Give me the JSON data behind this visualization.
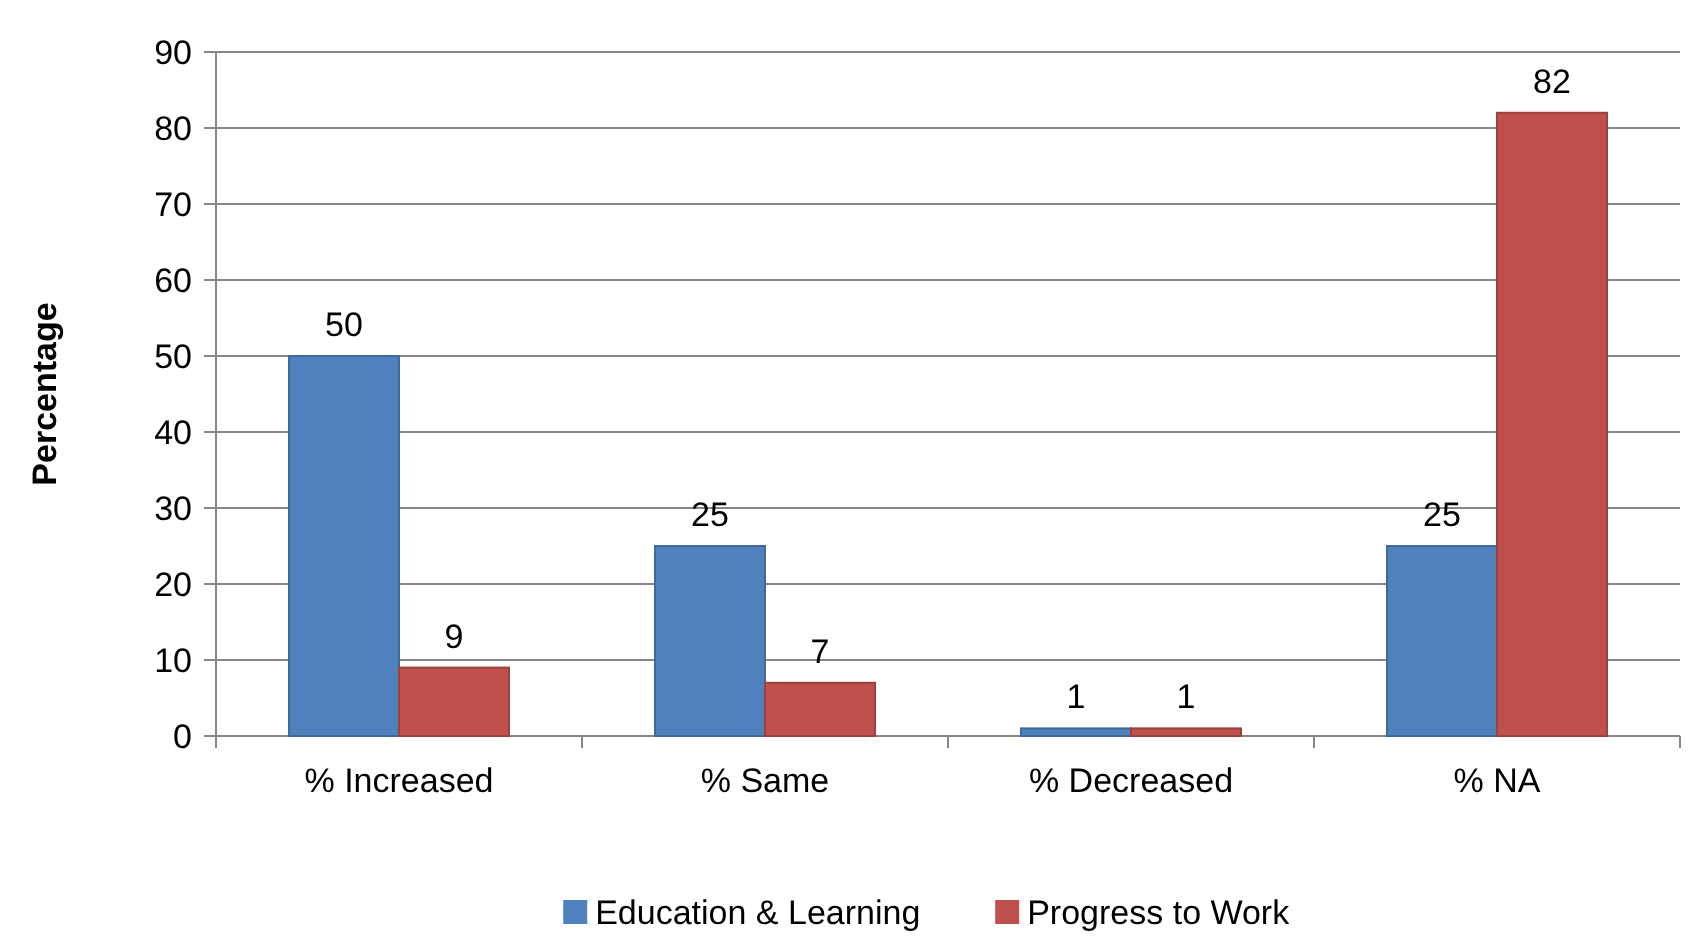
{
  "chart_data": {
    "type": "bar",
    "ylabel": "Percentage",
    "categories": [
      "% Increased",
      "% Same",
      "% Decreased",
      "% NA"
    ],
    "series": [
      {
        "name": "Education & Learning",
        "color": "#4f81bd",
        "values": [
          50,
          25,
          1,
          25
        ]
      },
      {
        "name": "Progress to Work",
        "color": "#c0504d",
        "values": [
          9,
          7,
          1,
          82
        ]
      }
    ],
    "ylim": [
      0,
      90
    ],
    "yticks": [
      0,
      10,
      20,
      30,
      40,
      50,
      60,
      70,
      80,
      90
    ],
    "grid": "y",
    "data_labels": true,
    "legend": "bottom"
  }
}
